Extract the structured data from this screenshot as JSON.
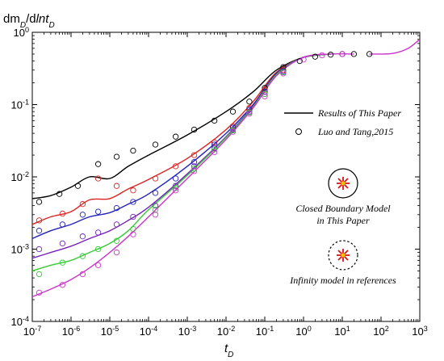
{
  "chart_data": {
    "type": "line",
    "ylabel": {
      "base": "dm",
      "sub1": "D",
      "mid": "/d",
      "ital": "ln",
      "t": "t",
      "sub2": "D"
    },
    "xlabel": {
      "base": "t",
      "sub": "D"
    },
    "x_scale": "log",
    "y_scale": "log",
    "xlim": [
      1e-07,
      1000
    ],
    "ylim": [
      0.0001,
      1
    ],
    "x_tick_exponents": [
      -7,
      -6,
      -5,
      -4,
      -3,
      -2,
      -1,
      0,
      1,
      2,
      3
    ],
    "y_tick_exponents": [
      -4,
      -3,
      -2,
      -1,
      0
    ],
    "tick_base": "10",
    "legend": {
      "placement": "center-right",
      "line_label": "Results of This Paper",
      "marker_label": "Luo and Tang,2015"
    },
    "annotations": {
      "closed_line1": "Closed Boundary Model",
      "closed_line2": "in This Paper",
      "infinity": "Infinity model in references"
    },
    "late_rise": {
      "x": [
        50,
        200,
        500,
        1000
      ],
      "y": [
        0.5,
        0.51,
        0.6,
        0.8
      ],
      "color": "#cc33cc"
    },
    "series": [
      {
        "color": "#000000",
        "curve": {
          "x": [
            1e-07,
            3e-07,
            1e-06,
            3e-06,
            1e-05,
            3e-05,
            0.0001,
            0.001,
            0.01,
            0.05,
            0.2,
            1,
            5
          ],
          "y": [
            0.005,
            0.0055,
            0.0072,
            0.01,
            0.0095,
            0.014,
            0.02,
            0.038,
            0.08,
            0.15,
            0.3,
            0.45,
            0.5
          ]
        },
        "points": {
          "x": [
            1.5e-07,
            5e-07,
            1.5e-06,
            5e-06,
            1.5e-05,
            4e-05,
            0.00015,
            0.0005,
            0.0015,
            0.005,
            0.015,
            0.04,
            0.1,
            0.3,
            0.8,
            2,
            5,
            10,
            20,
            50
          ],
          "y": [
            0.0045,
            0.0058,
            0.0075,
            0.015,
            0.019,
            0.023,
            0.028,
            0.036,
            0.045,
            0.06,
            0.08,
            0.11,
            0.17,
            0.33,
            0.4,
            0.46,
            0.49,
            0.5,
            0.5,
            0.5
          ]
        }
      },
      {
        "color": "#dd2222",
        "curve": {
          "x": [
            1e-07,
            3e-07,
            1e-06,
            3e-06,
            1e-05,
            3e-05,
            0.0001,
            0.001,
            0.01,
            0.05,
            0.2,
            1,
            5
          ],
          "y": [
            0.0022,
            0.0028,
            0.0033,
            0.0048,
            0.005,
            0.0068,
            0.0092,
            0.018,
            0.045,
            0.11,
            0.28,
            0.45,
            0.5
          ]
        },
        "points": {
          "x": [
            1.5e-07,
            6e-07,
            2e-06,
            5e-06,
            1.5e-05,
            4e-05,
            0.00015,
            0.0005,
            0.0015,
            0.005,
            0.015,
            0.04,
            0.1,
            0.3
          ],
          "y": [
            0.0025,
            0.0031,
            0.0042,
            0.0095,
            0.0075,
            0.0065,
            0.0095,
            0.014,
            0.02,
            0.03,
            0.05,
            0.09,
            0.16,
            0.3
          ]
        }
      },
      {
        "color": "#2222bb",
        "curve": {
          "x": [
            1e-07,
            3e-07,
            1e-06,
            3e-06,
            1e-05,
            3e-05,
            0.0001,
            0.001,
            0.01,
            0.05,
            0.2,
            1,
            5
          ],
          "y": [
            0.0014,
            0.0018,
            0.0022,
            0.0028,
            0.0032,
            0.0042,
            0.0058,
            0.014,
            0.04,
            0.1,
            0.27,
            0.45,
            0.5
          ]
        },
        "points": {
          "x": [
            1.5e-07,
            6e-07,
            2e-06,
            5e-06,
            1.5e-05,
            4e-05,
            0.00015,
            0.0005,
            0.0015,
            0.005,
            0.015,
            0.04,
            0.1,
            0.3
          ],
          "y": [
            0.0018,
            0.0022,
            0.003,
            0.0033,
            0.0037,
            0.0045,
            0.006,
            0.0095,
            0.016,
            0.028,
            0.048,
            0.085,
            0.15,
            0.29
          ]
        }
      },
      {
        "color": "#7722bb",
        "curve": {
          "x": [
            1e-07,
            3e-07,
            1e-06,
            3e-06,
            1e-05,
            3e-05,
            0.0001,
            0.001,
            0.01,
            0.05,
            0.2,
            1,
            5
          ],
          "y": [
            0.00075,
            0.0009,
            0.0011,
            0.0014,
            0.0018,
            0.0025,
            0.0038,
            0.011,
            0.036,
            0.095,
            0.26,
            0.45,
            0.5
          ]
        },
        "points": {
          "x": [
            1.5e-07,
            6e-07,
            2e-06,
            5e-06,
            1.5e-05,
            4e-05,
            0.00015,
            0.0005,
            0.0015,
            0.005,
            0.015,
            0.04,
            0.1,
            0.3
          ],
          "y": [
            0.001,
            0.0012,
            0.0015,
            0.0017,
            0.0022,
            0.0028,
            0.004,
            0.0075,
            0.014,
            0.025,
            0.045,
            0.08,
            0.14,
            0.28
          ]
        }
      },
      {
        "color": "#33cc33",
        "curve": {
          "x": [
            1e-07,
            3e-07,
            1e-06,
            3e-06,
            1e-05,
            3e-05,
            0.0001,
            0.001,
            0.01,
            0.05,
            0.2,
            1,
            5
          ],
          "y": [
            0.0005,
            0.0006,
            0.0007,
            0.0009,
            0.0012,
            0.0018,
            0.0035,
            0.0105,
            0.035,
            0.093,
            0.26,
            0.45,
            0.5
          ]
        },
        "points": {
          "x": [
            1.5e-07,
            6e-07,
            2e-06,
            5e-06,
            1.5e-05,
            4e-05,
            0.00015,
            0.0005,
            0.0015,
            0.005,
            0.015,
            0.04,
            0.1,
            0.3
          ],
          "y": [
            0.00045,
            0.00065,
            0.0008,
            0.001,
            0.0013,
            0.0019,
            0.0035,
            0.007,
            0.013,
            0.024,
            0.044,
            0.078,
            0.14,
            0.28
          ]
        }
      },
      {
        "color": "#cc33cc",
        "curve": {
          "x": [
            1e-07,
            3e-07,
            1e-06,
            3e-06,
            1e-05,
            3e-05,
            0.0001,
            0.001,
            0.01,
            0.05,
            0.2,
            1,
            5,
            20
          ],
          "y": [
            0.00022,
            0.00028,
            0.00038,
            0.00055,
            0.0009,
            0.0015,
            0.0028,
            0.0095,
            0.033,
            0.09,
            0.25,
            0.45,
            0.5,
            0.5
          ]
        },
        "points": {
          "x": [
            1.5e-07,
            6e-07,
            2e-06,
            5e-06,
            1.5e-05,
            4e-05,
            0.00015,
            0.0005,
            0.0015,
            0.005,
            0.015,
            0.04,
            0.1,
            0.3,
            1,
            3,
            10
          ],
          "y": [
            0.00025,
            0.00032,
            0.00045,
            0.0006,
            0.0009,
            0.0016,
            0.003,
            0.0065,
            0.012,
            0.022,
            0.042,
            0.075,
            0.13,
            0.27,
            0.42,
            0.48,
            0.5
          ]
        }
      }
    ]
  }
}
